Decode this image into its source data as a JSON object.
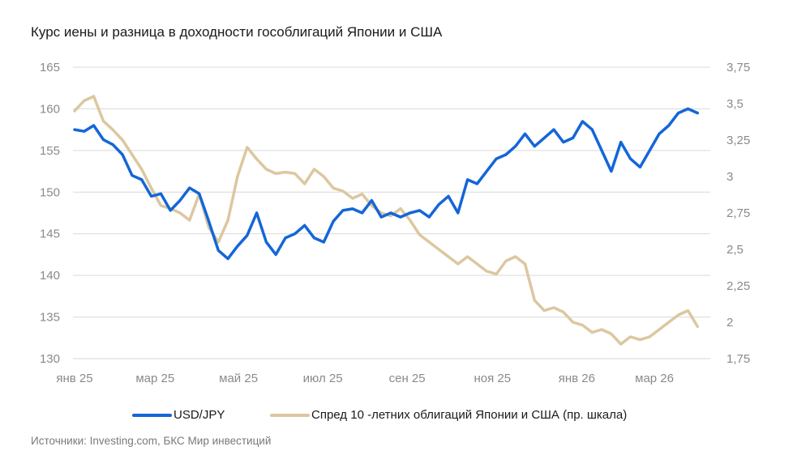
{
  "title": "Курс иены и разница в доходности гособлигаций Японии и США",
  "source": "Источники: Investing.com, БКС Мир инвестиций",
  "colors": {
    "usdjpy": "#1466d8",
    "spread": "#dcc7a0",
    "grid": "#d9d9d9",
    "tick": "#8a8a8a"
  },
  "chart_data": {
    "type": "line",
    "title": "Курс иены и разница в доходности гособлигаций Японии и США",
    "x_unit": "week since start of Jan 2025",
    "xlim": [
      0,
      66.5
    ],
    "x_ticks": [
      {
        "label": "янв 25",
        "week": 0
      },
      {
        "label": "мар 25",
        "week": 8.4
      },
      {
        "label": "май 25",
        "week": 17.1
      },
      {
        "label": "июл 25",
        "week": 25.9
      },
      {
        "label": "сен 25",
        "week": 34.7
      },
      {
        "label": "ноя 25",
        "week": 43.6
      },
      {
        "label": "янв 26",
        "week": 52.4
      },
      {
        "label": "мар 26",
        "week": 60.5
      }
    ],
    "y_left": {
      "ylim": [
        130,
        165
      ],
      "ticks": [
        "165",
        "160",
        "155",
        "150",
        "145",
        "140",
        "135",
        "130"
      ]
    },
    "y_right": {
      "ylim": [
        1.75,
        3.75
      ],
      "ticks": [
        "3,75",
        "3,5",
        "3,25",
        "3",
        "2,75",
        "2,5",
        "2,25",
        "2",
        "1,75"
      ]
    },
    "grid": true,
    "legend_position": "bottom",
    "series": [
      {
        "name": "USD/JPY",
        "axis": "left",
        "values": [
          157.5,
          157.3,
          158.0,
          156.3,
          155.7,
          154.5,
          152.0,
          151.5,
          149.5,
          149.8,
          147.8,
          149.0,
          150.5,
          149.8,
          146.5,
          143.0,
          142.0,
          143.5,
          144.8,
          147.5,
          144.0,
          142.5,
          144.5,
          145.0,
          146.0,
          144.5,
          144.0,
          146.5,
          147.8,
          148.0,
          147.5,
          149.0,
          147.0,
          147.5,
          147.0,
          147.5,
          147.8,
          147.0,
          148.5,
          149.5,
          147.5,
          151.5,
          151.0,
          152.5,
          154.0,
          154.5,
          155.5,
          157.0,
          155.5,
          156.5,
          157.5,
          156.0,
          156.5,
          158.5,
          157.5,
          155.0,
          152.5,
          156.0,
          154.0,
          153.0,
          155.0,
          157.0,
          158.0,
          159.5,
          160.0,
          159.5
        ]
      },
      {
        "name": "Спред 10 -летних облигаций Японии и США (пр. шкала)",
        "axis": "right",
        "values": [
          3.45,
          3.52,
          3.55,
          3.38,
          3.32,
          3.25,
          3.15,
          3.05,
          2.92,
          2.8,
          2.78,
          2.75,
          2.7,
          2.88,
          2.65,
          2.55,
          2.7,
          3.0,
          3.2,
          3.12,
          3.05,
          3.02,
          3.03,
          3.02,
          2.95,
          3.05,
          3.0,
          2.92,
          2.9,
          2.85,
          2.88,
          2.8,
          2.75,
          2.73,
          2.78,
          2.7,
          2.6,
          2.55,
          2.5,
          2.45,
          2.4,
          2.45,
          2.4,
          2.35,
          2.33,
          2.42,
          2.45,
          2.4,
          2.15,
          2.08,
          2.1,
          2.07,
          2.0,
          1.98,
          1.93,
          1.95,
          1.92,
          1.85,
          1.9,
          1.88,
          1.9,
          1.95,
          2.0,
          2.05,
          2.08,
          1.97
        ]
      }
    ]
  },
  "legend": {
    "items": [
      {
        "label": "USD/JPY"
      },
      {
        "label": "Спред 10 -летних облигаций Японии и США (пр. шкала)"
      }
    ]
  }
}
